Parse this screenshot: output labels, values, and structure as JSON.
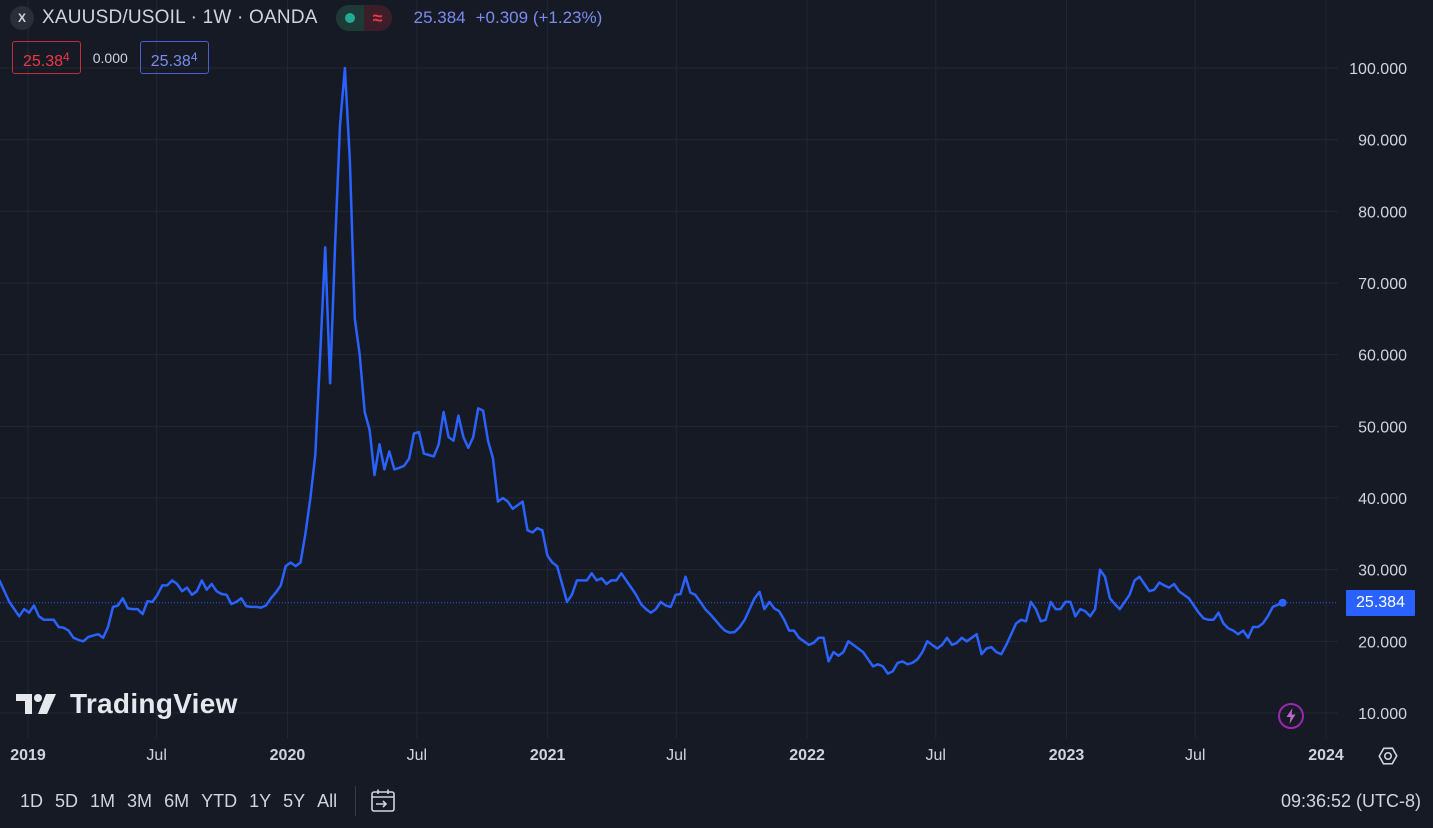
{
  "legend": {
    "symbol_badge": "X",
    "title": "XAUUSD/USOIL · 1W · OANDA",
    "price": "25.384",
    "change": "+0.309 (+1.23%)"
  },
  "trade": {
    "sell_main": "25.38",
    "sell_small": "4",
    "spread": "0.000",
    "buy_main": "25.38",
    "buy_small": "4"
  },
  "watermark": {
    "text": "TradingView"
  },
  "last_price_label": "25.384",
  "ranges": [
    "1D",
    "5D",
    "1M",
    "3M",
    "6M",
    "YTD",
    "1Y",
    "5Y",
    "All"
  ],
  "clock": "09:36:52 (UTC-8)",
  "icons": {
    "symbol": "symbol-badge-icon",
    "market_open": "green-dot-icon",
    "wave": "wave-icon",
    "flash": "lightning-icon",
    "settings": "gear-icon",
    "date_range": "calendar-goto-icon",
    "logo": "tradingview-logo-icon"
  },
  "colors": {
    "background": "#161a25",
    "line": "#2962ff",
    "grid": "#232733",
    "text": "#d1d4dc",
    "sell": "#f23645",
    "buy": "#7b8cf0"
  },
  "chart_data": {
    "type": "line",
    "title": "XAUUSD/USOIL · 1W · OANDA",
    "xlabel": "",
    "ylabel": "",
    "x_start": "2018-11-01",
    "x_end": "2023-11-01",
    "xlim": [
      "2018-11-01",
      "2024-02-10"
    ],
    "ylim": [
      5,
      112
    ],
    "yticks": [
      10,
      20,
      30,
      40,
      50,
      60,
      70,
      80,
      90,
      100
    ],
    "ytick_labels": [
      "10.000",
      "20.000",
      "30.000",
      "40.000",
      "50.000",
      "60.000",
      "70.000",
      "80.000",
      "90.000",
      "100.000"
    ],
    "xticks": [
      {
        "date": "2019-01-01",
        "label": "2019",
        "major": true
      },
      {
        "date": "2019-07-01",
        "label": "Jul",
        "major": false
      },
      {
        "date": "2020-01-01",
        "label": "2020",
        "major": true
      },
      {
        "date": "2020-07-01",
        "label": "Jul",
        "major": false
      },
      {
        "date": "2021-01-01",
        "label": "2021",
        "major": true
      },
      {
        "date": "2021-07-01",
        "label": "Jul",
        "major": false
      },
      {
        "date": "2022-01-01",
        "label": "2022",
        "major": true
      },
      {
        "date": "2022-07-01",
        "label": "Jul",
        "major": false
      },
      {
        "date": "2023-01-01",
        "label": "2023",
        "major": true
      },
      {
        "date": "2023-07-01",
        "label": "Jul",
        "major": false
      },
      {
        "date": "2024-01-01",
        "label": "2024",
        "major": true
      }
    ],
    "last_value": 25.384,
    "grid": true,
    "series": [
      {
        "name": "XAUUSD/USOIL",
        "values": [
          24.2,
          24.0,
          27.5,
          28.5,
          27.0,
          25.5,
          24.5,
          23.5,
          24.5,
          24.0,
          25.0,
          23.5,
          23.0,
          23.0,
          23.0,
          22.0,
          21.9,
          21.5,
          20.5,
          20.2,
          20.0,
          20.6,
          20.8,
          21.0,
          20.5,
          22.0,
          24.8,
          25.0,
          26.0,
          24.6,
          24.5,
          24.5,
          23.8,
          25.6,
          25.5,
          26.5,
          27.8,
          27.8,
          28.5,
          28.0,
          27.0,
          27.5,
          26.5,
          27.0,
          28.5,
          27.2,
          28.0,
          27.0,
          26.6,
          26.5,
          25.2,
          25.5,
          26.0,
          24.9,
          24.8,
          24.8,
          24.7,
          25.0,
          26.0,
          26.8,
          27.8,
          30.5,
          31.0,
          30.5,
          31.0,
          35.0,
          40.0,
          46.0,
          60.0,
          75.0,
          56.0,
          75.0,
          92.0,
          100.0,
          87.0,
          65.0,
          60.0,
          52.0,
          49.5,
          43.2,
          47.5,
          44.0,
          46.5,
          44.0,
          44.2,
          44.5,
          45.5,
          49.0,
          49.2,
          46.2,
          46.0,
          45.8,
          47.5,
          52.0,
          48.5,
          48.0,
          51.5,
          48.5,
          47.0,
          48.5,
          52.5,
          52.2,
          48.0,
          45.5,
          39.5,
          40.0,
          39.5,
          38.5,
          39.0,
          39.5,
          35.5,
          35.2,
          35.8,
          35.5,
          32.0,
          31.0,
          30.5,
          28.0,
          25.5,
          26.5,
          28.5,
          28.5,
          28.5,
          29.5,
          28.5,
          28.8,
          28.0,
          28.5,
          28.5,
          29.5,
          28.5,
          27.5,
          26.5,
          25.2,
          24.5,
          24.0,
          24.5,
          25.5,
          25.0,
          24.8,
          26.5,
          26.6,
          29.0,
          26.8,
          26.5,
          25.5,
          24.5,
          23.8,
          23.0,
          22.2,
          21.5,
          21.2,
          21.3,
          22.0,
          23.0,
          24.5,
          26.0,
          26.9,
          24.5,
          25.5,
          24.6,
          24.2,
          23.0,
          21.5,
          21.5,
          20.5,
          20.0,
          19.5,
          19.8,
          20.5,
          20.5,
          17.2,
          18.5,
          18.0,
          18.5,
          20.0,
          19.5,
          19.0,
          18.5,
          17.5,
          16.5,
          16.8,
          16.5,
          15.5,
          15.8,
          17.0,
          17.2,
          16.8,
          17.0,
          17.5,
          18.5,
          20.0,
          19.5,
          19.0,
          19.5,
          20.5,
          19.5,
          19.8,
          20.5,
          20.0,
          20.5,
          21.0,
          18.2,
          19.0,
          19.2,
          18.5,
          18.2,
          19.5,
          21.0,
          22.5,
          23.0,
          22.8,
          25.5,
          24.5,
          22.8,
          23.0,
          25.5,
          24.5,
          24.5,
          25.5,
          25.5,
          23.5,
          24.5,
          24.2,
          23.5,
          24.5,
          30.0,
          29.0,
          26.0,
          25.2,
          24.5,
          25.5,
          26.5,
          28.5,
          29.0,
          28.0,
          27.0,
          27.2,
          28.2,
          27.8,
          27.5,
          28.0,
          27.0,
          26.5,
          26.0,
          25.0,
          24.0,
          23.2,
          23.0,
          23.0,
          24.0,
          22.5,
          21.8,
          21.5,
          21.0,
          21.5,
          20.5,
          22.0,
          22.0,
          22.5,
          23.5,
          24.8,
          25.1,
          25.384
        ]
      }
    ]
  }
}
